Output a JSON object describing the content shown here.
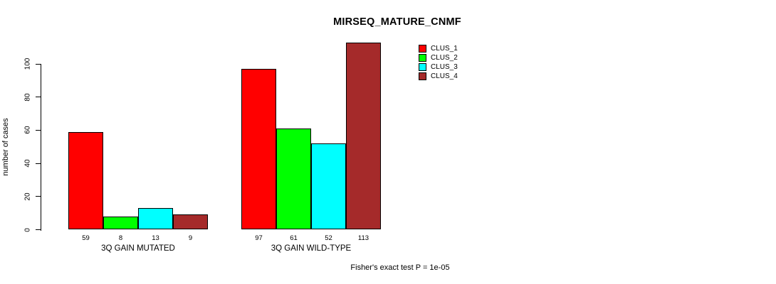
{
  "title": "MIRSEQ_MATURE_CNMF",
  "caption": "Fisher's exact test P = 1e-05",
  "chart_data": {
    "type": "bar",
    "title": "MIRSEQ_MATURE_CNMF",
    "xlabel": "",
    "ylabel": "number of cases",
    "categories": [
      "3Q GAIN MUTATED",
      "3Q GAIN WILD-TYPE"
    ],
    "series": [
      {
        "name": "CLUS_1",
        "color": "#ff0000",
        "values": [
          59,
          97
        ]
      },
      {
        "name": "CLUS_2",
        "color": "#00ff00",
        "values": [
          8,
          61
        ]
      },
      {
        "name": "CLUS_3",
        "color": "#00ffff",
        "values": [
          13,
          52
        ]
      },
      {
        "name": "CLUS_4",
        "color": "#a52a2a",
        "values": [
          9,
          113
        ]
      }
    ],
    "value_labels": [
      [
        59,
        8,
        13,
        9
      ],
      [
        97,
        61,
        52,
        113
      ]
    ],
    "y_ticks": [
      0,
      20,
      40,
      60,
      80,
      100
    ],
    "ylim": [
      0,
      113
    ],
    "grid": false,
    "bar_border_color": "#000000",
    "legend": {
      "position": "top-center-inside",
      "entries": [
        "CLUS_1",
        "CLUS_2",
        "CLUS_3",
        "CLUS_4"
      ]
    },
    "caption": "Fisher's exact test P = 1e-05"
  }
}
